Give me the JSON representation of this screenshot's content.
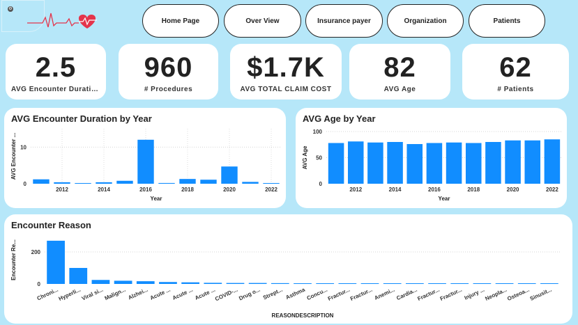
{
  "nav": [
    "Home Page",
    "Over View",
    "Insurance payer",
    "Organization",
    "Patients"
  ],
  "kpis": [
    {
      "value": "2.5",
      "label": "AVG Encounter Duration"
    },
    {
      "value": "960",
      "label": "# Procedures"
    },
    {
      "value": "$1.7K",
      "label": "AVG TOTAL CLAIM COST"
    },
    {
      "value": "82",
      "label": "AVG Age"
    },
    {
      "value": "62",
      "label": "# Patients"
    }
  ],
  "colors": {
    "bar": "#118dff",
    "background": "#b6e7f9",
    "heart": "#e4344b"
  },
  "chart_data": [
    {
      "type": "bar",
      "title": "AVG Encounter Duration by Year",
      "xlabel": "Year",
      "ylabel": "AVG Encounter ...",
      "categories": [
        2011,
        2012,
        2013,
        2014,
        2015,
        2016,
        2017,
        2018,
        2019,
        2020,
        2021,
        2022
      ],
      "values": [
        1.2,
        0.4,
        0.1,
        0.4,
        0.8,
        12,
        0.2,
        1.3,
        1.1,
        4.7,
        0.5,
        0.1
      ],
      "ylim": [
        0,
        15
      ],
      "yticks": [
        0,
        10
      ],
      "xticks": [
        2012,
        2014,
        2016,
        2018,
        2020,
        2022
      ]
    },
    {
      "type": "bar",
      "title": "AVG Age by Year",
      "xlabel": "Year",
      "ylabel": "AVG Age",
      "categories": [
        2011,
        2012,
        2013,
        2014,
        2015,
        2016,
        2017,
        2018,
        2019,
        2020,
        2021,
        2022
      ],
      "values": [
        78,
        81,
        79,
        80,
        76,
        78,
        79,
        78,
        80,
        83,
        83,
        85
      ],
      "ylim": [
        0,
        100
      ],
      "yticks": [
        0,
        50,
        100
      ],
      "xticks": [
        2012,
        2014,
        2016,
        2018,
        2020,
        2022
      ]
    },
    {
      "type": "bar",
      "title": "Encounter Reason",
      "xlabel": "REASONDESCRIPTION",
      "ylabel": "Encounter Re...",
      "categories": [
        "Chroni...",
        "Hyperli...",
        "Viral si...",
        "Malign...",
        "Alzhei...",
        "Acute ...",
        "Acute ...",
        "Acute ...",
        "COVID-...",
        "Drug o...",
        "Strept...",
        "Asthma",
        "Concu...",
        "Fractur...",
        "Fractur...",
        "Anemi...",
        "Cardia...",
        "Fractur...",
        "Fractur...",
        "Injury ...",
        "Neopla...",
        "Osteoa...",
        "Sinusit..."
      ],
      "values": [
        270,
        100,
        25,
        20,
        17,
        12,
        10,
        7,
        6,
        6,
        5,
        4,
        4,
        4,
        4,
        3,
        3,
        3,
        3,
        3,
        3,
        2,
        2
      ],
      "ylim": [
        0,
        300
      ],
      "yticks": [
        0,
        200
      ]
    }
  ]
}
